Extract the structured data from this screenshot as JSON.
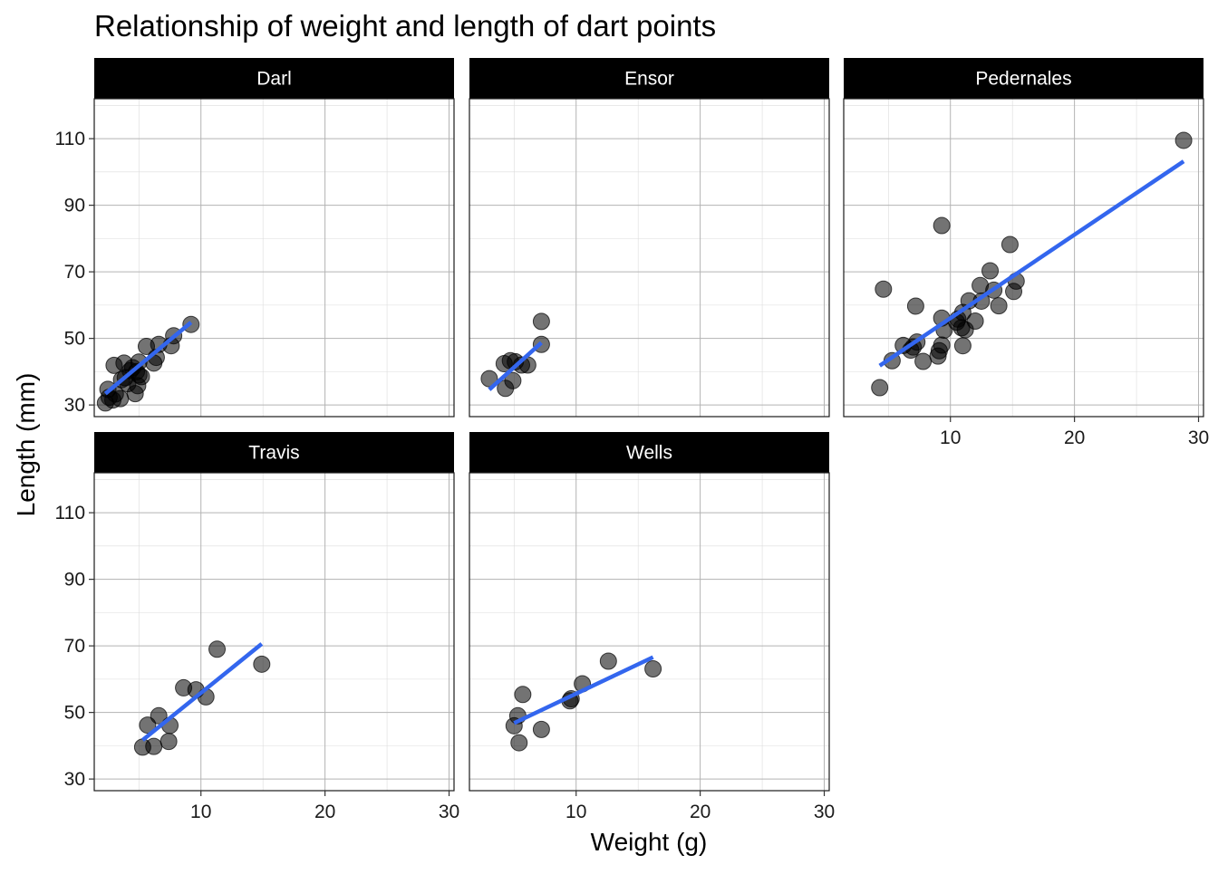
{
  "chart_data": {
    "type": "scatter",
    "title": "Relationship of weight and length of dart points",
    "xlabel": "Weight (g)",
    "ylabel": "Length (mm)",
    "xlim": [
      1.4,
      30.4
    ],
    "ylim": [
      26.5,
      122
    ],
    "x_ticks": [
      10,
      20,
      30
    ],
    "y_ticks": [
      30,
      50,
      70,
      90,
      110
    ],
    "grid": true,
    "facet_layout": "3 columns, 2 rows",
    "style": {
      "point_color": "#000000",
      "point_opacity": 0.55,
      "line_color": "#3366ee",
      "strip_color": "#000000"
    },
    "facets": [
      {
        "name": "Darl",
        "points": [
          [
            2.3,
            30.6
          ],
          [
            2.6,
            32.3
          ],
          [
            2.5,
            34.7
          ],
          [
            2.9,
            31.5
          ],
          [
            3.1,
            33.3
          ],
          [
            3.5,
            31.9
          ],
          [
            3.0,
            41.9
          ],
          [
            3.6,
            37.6
          ],
          [
            3.9,
            38.2
          ],
          [
            4.1,
            36.4
          ],
          [
            3.8,
            42.6
          ],
          [
            4.3,
            40.3
          ],
          [
            4.5,
            41.2
          ],
          [
            4.8,
            40.0
          ],
          [
            5.0,
            39.0
          ],
          [
            4.7,
            33.4
          ],
          [
            4.9,
            35.8
          ],
          [
            5.2,
            38.5
          ],
          [
            5.0,
            42.9
          ],
          [
            5.6,
            47.6
          ],
          [
            6.2,
            42.6
          ],
          [
            6.4,
            44.3
          ],
          [
            6.6,
            48.2
          ],
          [
            7.6,
            47.8
          ],
          [
            7.8,
            50.8
          ],
          [
            9.2,
            54.2
          ]
        ],
        "fit": [
          [
            2.3,
            33.4
          ],
          [
            9.2,
            54.8
          ]
        ]
      },
      {
        "name": "Ensor",
        "points": [
          [
            3.0,
            37.9
          ],
          [
            4.2,
            42.4
          ],
          [
            4.3,
            35.0
          ],
          [
            4.7,
            43.3
          ],
          [
            4.9,
            37.3
          ],
          [
            5.1,
            43.0
          ],
          [
            5.6,
            42.0
          ],
          [
            6.1,
            42.0
          ],
          [
            7.2,
            48.2
          ],
          [
            7.2,
            55.1
          ]
        ],
        "fit": [
          [
            3.0,
            34.6
          ],
          [
            7.2,
            48.7
          ]
        ]
      },
      {
        "name": "Pedernales",
        "points": [
          [
            4.3,
            35.2
          ],
          [
            4.6,
            64.8
          ],
          [
            5.3,
            43.3
          ],
          [
            6.2,
            47.9
          ],
          [
            6.8,
            46.5
          ],
          [
            7.0,
            47.4
          ],
          [
            7.2,
            59.7
          ],
          [
            7.3,
            48.9
          ],
          [
            7.8,
            43.1
          ],
          [
            9.0,
            44.7
          ],
          [
            9.1,
            46.3
          ],
          [
            9.3,
            48.0
          ],
          [
            9.3,
            56.1
          ],
          [
            9.3,
            83.9
          ],
          [
            9.5,
            52.5
          ],
          [
            10.5,
            54.9
          ],
          [
            10.6,
            55.8
          ],
          [
            10.9,
            53.2
          ],
          [
            11.0,
            57.8
          ],
          [
            11.0,
            47.8
          ],
          [
            11.2,
            52.6
          ],
          [
            11.5,
            61.3
          ],
          [
            12.0,
            55.2
          ],
          [
            12.4,
            65.9
          ],
          [
            12.5,
            61.2
          ],
          [
            13.2,
            70.3
          ],
          [
            13.5,
            64.5
          ],
          [
            13.9,
            59.8
          ],
          [
            14.8,
            78.2
          ],
          [
            15.1,
            64.1
          ],
          [
            15.3,
            67.2
          ],
          [
            28.8,
            109.5
          ]
        ],
        "fit": [
          [
            4.3,
            41.8
          ],
          [
            28.8,
            103.2
          ]
        ]
      },
      {
        "name": "Travis",
        "points": [
          [
            5.3,
            39.6
          ],
          [
            5.7,
            46.2
          ],
          [
            6.2,
            39.8
          ],
          [
            6.6,
            49.0
          ],
          [
            7.4,
            41.3
          ],
          [
            7.5,
            46.1
          ],
          [
            8.6,
            57.4
          ],
          [
            9.6,
            56.8
          ],
          [
            10.4,
            54.7
          ],
          [
            11.3,
            69.0
          ],
          [
            14.9,
            64.5
          ]
        ],
        "fit": [
          [
            5.3,
            41.7
          ],
          [
            14.9,
            70.6
          ]
        ]
      },
      {
        "name": "Wells",
        "points": [
          [
            5.0,
            46.0
          ],
          [
            5.3,
            49.0
          ],
          [
            5.4,
            40.9
          ],
          [
            5.7,
            55.4
          ],
          [
            7.2,
            44.9
          ],
          [
            9.5,
            53.5
          ],
          [
            9.6,
            54.1
          ],
          [
            10.5,
            58.6
          ],
          [
            12.6,
            65.4
          ],
          [
            16.2,
            63.1
          ]
        ],
        "fit": [
          [
            5.0,
            46.8
          ],
          [
            16.2,
            66.6
          ]
        ]
      }
    ]
  }
}
